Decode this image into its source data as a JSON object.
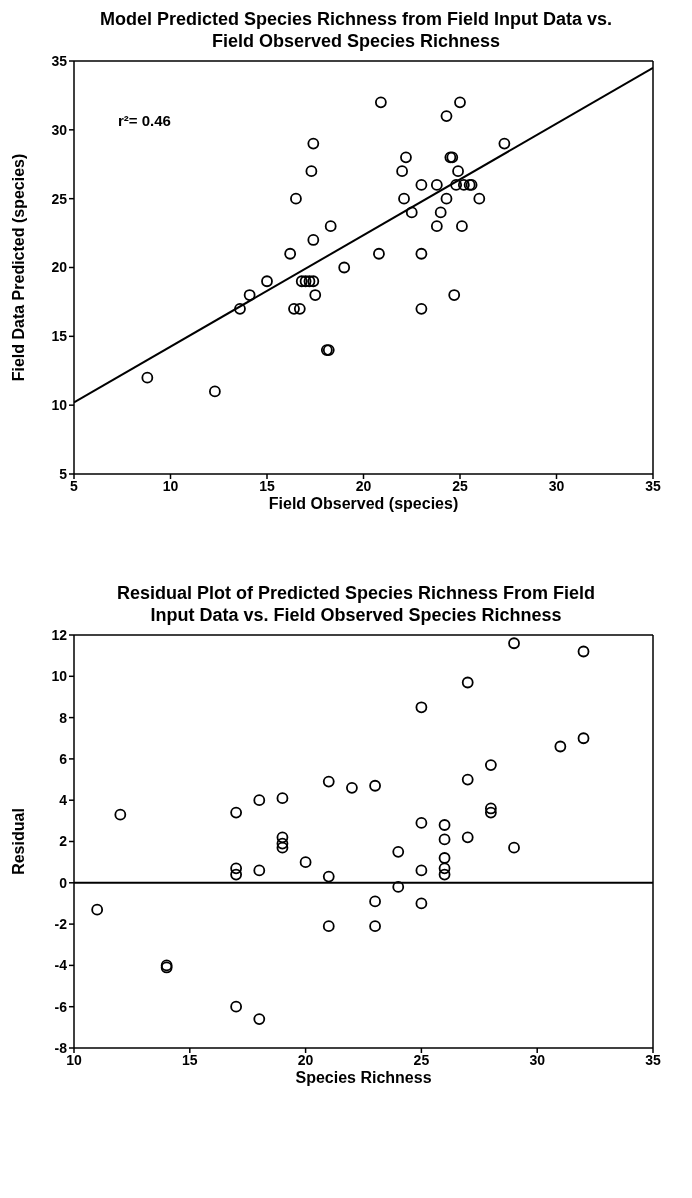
{
  "chart_data": [
    {
      "type": "scatter",
      "title": "Model Predicted Species Richness from Field Input Data vs. Field Observed Species Richness",
      "xlabel": "Field Observed (species)",
      "ylabel": "Field Data Predicted (species)",
      "annotations": [
        "r²= 0.46"
      ],
      "xlim": [
        5,
        35
      ],
      "xticks": [
        5,
        10,
        15,
        20,
        25,
        30,
        35
      ],
      "ylim": [
        5,
        35
      ],
      "yticks": [
        5,
        10,
        15,
        20,
        25,
        30,
        35
      ],
      "grid": false,
      "marker": "circle",
      "series": [
        {
          "color": "#000000",
          "x": [
            8.8,
            12.3,
            13.6,
            14.1,
            15,
            16.2,
            16.4,
            16.5,
            16.7,
            16.8,
            17,
            17.2,
            17.3,
            17.4,
            17.4,
            17.4,
            17.5,
            18.1,
            18.2,
            18.3,
            19,
            20.8,
            20.9,
            22,
            22.1,
            22.2,
            22.5,
            23,
            23,
            23,
            23.8,
            23.8,
            24,
            24.3,
            24.3,
            24.5,
            24.6,
            24.7,
            24.8,
            24.9,
            25,
            25.1,
            25.2,
            25.5,
            25.6,
            26,
            27.3
          ],
          "values": [
            12,
            11,
            17,
            18,
            19,
            21,
            17,
            25,
            17,
            19,
            19,
            19,
            27,
            19,
            29,
            22,
            18,
            14,
            14,
            23,
            20,
            21,
            32,
            27,
            25,
            28,
            24,
            26,
            21,
            17,
            26,
            23,
            24,
            31,
            25,
            28,
            28,
            18,
            26,
            27,
            32,
            23,
            26,
            26,
            26,
            25,
            29
          ]
        },
        {
          "type": "line",
          "marker": "none",
          "color": "#000000",
          "x": [
            5,
            35
          ],
          "values": [
            10.2,
            34.5
          ]
        }
      ]
    },
    {
      "type": "scatter",
      "title": "Residual Plot of Predicted Species Richness From Field Input Data vs. Field Observed Species Richness",
      "xlabel": "Species Richness",
      "ylabel": "Residual",
      "xlim": [
        10,
        35
      ],
      "xticks": [
        10,
        15,
        20,
        25,
        30,
        35
      ],
      "ylim": [
        -8,
        12
      ],
      "yticks": [
        -8,
        -6,
        -4,
        -2,
        0,
        2,
        4,
        6,
        8,
        10,
        12
      ],
      "grid": false,
      "marker": "circle",
      "ref_lines": [
        {
          "axis": "y",
          "value": 0,
          "color": "#000000"
        }
      ],
      "series": [
        {
          "color": "#000000",
          "x": [
            11,
            12,
            14,
            14,
            17,
            17,
            17,
            17,
            18,
            18,
            18,
            19,
            19,
            19,
            19,
            20,
            21,
            21,
            21,
            22,
            23,
            23,
            23,
            24,
            24,
            25,
            25,
            25,
            25,
            26,
            26,
            26,
            26,
            26,
            27,
            27,
            27,
            28,
            28,
            28,
            29,
            29,
            31,
            32,
            32
          ],
          "values": [
            -1.3,
            3.3,
            -4.0,
            -4.1,
            3.4,
            0.7,
            0.4,
            -6.0,
            4.0,
            0.6,
            -6.6,
            4.1,
            2.2,
            1.9,
            1.7,
            1.0,
            4.9,
            0.3,
            -2.1,
            4.6,
            4.7,
            -0.9,
            -2.1,
            1.5,
            -0.2,
            8.5,
            2.9,
            0.6,
            -1.0,
            2.8,
            2.1,
            1.2,
            0.7,
            0.4,
            9.7,
            5.0,
            2.2,
            5.7,
            3.6,
            3.4,
            11.6,
            1.7,
            6.6,
            11.2,
            7.0
          ]
        }
      ]
    }
  ]
}
